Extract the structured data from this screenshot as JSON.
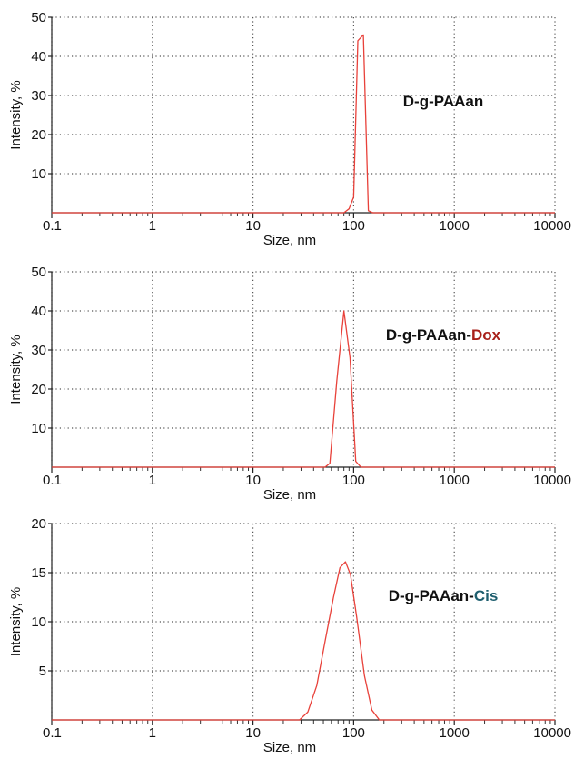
{
  "chart_data": [
    {
      "type": "line",
      "xscale": "log",
      "xlim": [
        0.1,
        10000
      ],
      "ylim": [
        0,
        50
      ],
      "xlabel": "Size, nm",
      "ylabel": "Intensity, %",
      "xticks": [
        "0.1",
        "1",
        "10",
        "100",
        "1000",
        "10000"
      ],
      "yticks": [
        "10",
        "20",
        "30",
        "40",
        "50"
      ],
      "grid": true,
      "annotation": {
        "parts": [
          "D-g-PAAan"
        ],
        "colors": [
          "#111111"
        ]
      },
      "series": [
        {
          "color": "#e8413a",
          "x": [
            0.1,
            80,
            90,
            100,
            110,
            125,
            140,
            155,
            10000
          ],
          "y": [
            0,
            0,
            1,
            4,
            44,
            45.5,
            0.5,
            0,
            0
          ]
        }
      ]
    },
    {
      "type": "line",
      "xscale": "log",
      "xlim": [
        0.1,
        10000
      ],
      "ylim": [
        0,
        50
      ],
      "xlabel": "Size, nm",
      "ylabel": "Intensity, %",
      "xticks": [
        "0.1",
        "1",
        "10",
        "100",
        "1000",
        "10000"
      ],
      "yticks": [
        "10",
        "20",
        "30",
        "40",
        "50"
      ],
      "grid": true,
      "annotation": {
        "parts": [
          "D-g-PAAan-",
          "Dox"
        ],
        "colors": [
          "#111111",
          "#a8201a"
        ]
      },
      "series": [
        {
          "color": "#e8413a",
          "x": [
            0.1,
            52,
            58,
            68,
            80,
            92,
            105,
            118,
            10000
          ],
          "y": [
            0,
            0,
            1,
            22,
            40,
            28,
            1.5,
            0,
            0
          ]
        }
      ]
    },
    {
      "type": "line",
      "xscale": "log",
      "xlim": [
        0.1,
        10000
      ],
      "ylim": [
        0,
        20
      ],
      "xlabel": "Size, nm",
      "ylabel": "Intensity, %",
      "xticks": [
        "0.1",
        "1",
        "10",
        "100",
        "1000",
        "10000"
      ],
      "yticks": [
        "5",
        "10",
        "15",
        "20"
      ],
      "grid": true,
      "annotation": {
        "parts": [
          "D-g-PAAan-",
          "Cis"
        ],
        "colors": [
          "#111111",
          "#1f5f6f"
        ]
      },
      "series": [
        {
          "color": "#e8413a",
          "x": [
            0.1,
            29,
            35,
            43,
            52,
            63,
            73,
            83,
            93,
            107,
            128,
            152,
            180,
            10000
          ],
          "y": [
            0,
            0,
            0.8,
            3.5,
            8,
            12.5,
            15.5,
            16.1,
            14.8,
            10.5,
            4.5,
            1,
            0,
            0
          ]
        }
      ]
    }
  ]
}
